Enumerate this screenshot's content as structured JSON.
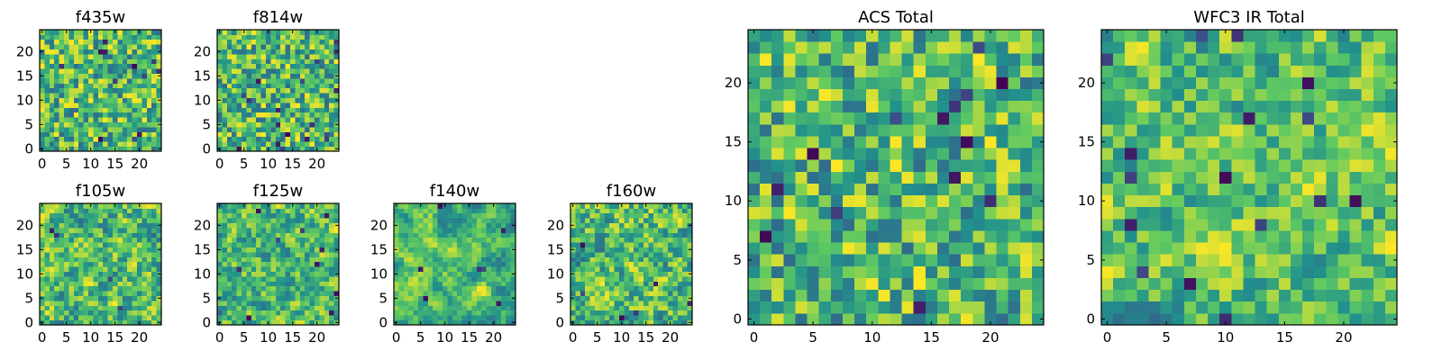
{
  "chart_data": [
    {
      "type": "heatmap",
      "title": "f435w",
      "grid": 25,
      "ticks": [
        0,
        5,
        10,
        15,
        20
      ],
      "xlim": [
        0,
        25
      ],
      "ylim": [
        0,
        25
      ],
      "seed": 11,
      "smooth": 0,
      "holes": 12
    },
    {
      "type": "heatmap",
      "title": "f814w",
      "grid": 25,
      "ticks": [
        0,
        5,
        10,
        15,
        20
      ],
      "xlim": [
        0,
        25
      ],
      "ylim": [
        0,
        25
      ],
      "seed": 23,
      "smooth": 0,
      "holes": 18
    },
    {
      "type": "heatmap",
      "title": "f105w",
      "grid": 25,
      "ticks": [
        0,
        5,
        10,
        15,
        20
      ],
      "xlim": [
        0,
        25
      ],
      "ylim": [
        0,
        25
      ],
      "seed": 37,
      "smooth": 1,
      "holes": 4
    },
    {
      "type": "heatmap",
      "title": "f125w",
      "grid": 25,
      "ticks": [
        0,
        5,
        10,
        15,
        20
      ],
      "xlim": [
        0,
        25
      ],
      "ylim": [
        0,
        25
      ],
      "seed": 41,
      "smooth": 1,
      "holes": 10
    },
    {
      "type": "heatmap",
      "title": "f140w",
      "grid": 25,
      "ticks": [
        0,
        5,
        10,
        15,
        20
      ],
      "xlim": [
        0,
        25
      ],
      "ylim": [
        0,
        25
      ],
      "seed": 53,
      "smooth": 2,
      "holes": 7
    },
    {
      "type": "heatmap",
      "title": "f160w",
      "grid": 25,
      "ticks": [
        0,
        5,
        10,
        15,
        20
      ],
      "xlim": [
        0,
        25
      ],
      "ylim": [
        0,
        25
      ],
      "seed": 67,
      "smooth": 1,
      "holes": 6
    },
    {
      "type": "heatmap",
      "title": "ACS Total",
      "grid": 25,
      "ticks": [
        0,
        5,
        10,
        15,
        20
      ],
      "xlim": [
        0,
        25
      ],
      "ylim": [
        0,
        25
      ],
      "seed": 79,
      "smooth": 0,
      "holes": 14
    },
    {
      "type": "heatmap",
      "title": "WFC3 IR Total",
      "grid": 25,
      "ticks": [
        0,
        5,
        10,
        15,
        20
      ],
      "xlim": [
        0,
        25
      ],
      "ylim": [
        0,
        25
      ],
      "seed": 97,
      "smooth": 1,
      "holes": 16
    }
  ],
  "colormap": [
    "#440154",
    "#3b528b",
    "#21918c",
    "#5ec962",
    "#fde725"
  ]
}
